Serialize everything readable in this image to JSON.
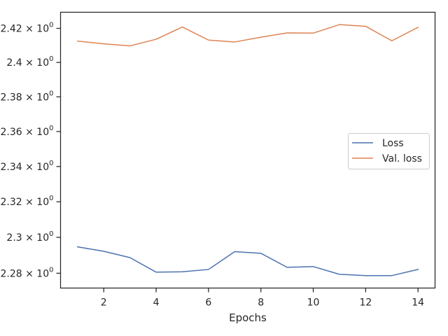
{
  "chart_data": {
    "type": "line",
    "title": "",
    "xlabel": "Epochs",
    "ylabel": "",
    "yscale": "log",
    "grid": false,
    "legend_position": "center-right",
    "xlim": [
      0.35,
      14.65
    ],
    "ylim": [
      2.2718,
      2.4295
    ],
    "xticks": [
      2,
      4,
      6,
      8,
      10,
      12,
      14
    ],
    "xtick_labels": [
      "2",
      "4",
      "6",
      "8",
      "10",
      "12",
      "14"
    ],
    "yticks": [
      2.28,
      2.3,
      2.32,
      2.34,
      2.36,
      2.38,
      2.4,
      2.42
    ],
    "ytick_labels": [
      {
        "mantissa": "2.28",
        "base": "10",
        "exp": "0"
      },
      {
        "mantissa": "2.3",
        "base": "10",
        "exp": "0"
      },
      {
        "mantissa": "2.32",
        "base": "10",
        "exp": "0"
      },
      {
        "mantissa": "2.34",
        "base": "10",
        "exp": "0"
      },
      {
        "mantissa": "2.36",
        "base": "10",
        "exp": "0"
      },
      {
        "mantissa": "2.38",
        "base": "10",
        "exp": "0"
      },
      {
        "mantissa": "2.4",
        "base": "10",
        "exp": "0"
      },
      {
        "mantissa": "2.42",
        "base": "10",
        "exp": "0"
      }
    ],
    "x": [
      1,
      2,
      3,
      4,
      5,
      6,
      7,
      8,
      9,
      10,
      11,
      12,
      13,
      14
    ],
    "series": [
      {
        "name": "Loss",
        "color": "#4c72b0",
        "values": [
          2.2947,
          2.2922,
          2.2887,
          2.2806,
          2.2808,
          2.2821,
          2.292,
          2.2911,
          2.2833,
          2.2837,
          2.2794,
          2.2787,
          2.2787,
          2.2821
        ]
      },
      {
        "name": "Val. loss",
        "color": "#dd8452",
        "values": [
          2.4125,
          2.4109,
          2.4097,
          2.4136,
          2.4208,
          2.4131,
          2.412,
          2.4148,
          2.4173,
          2.4172,
          2.4222,
          2.4212,
          2.4127,
          2.4206
        ]
      }
    ]
  }
}
